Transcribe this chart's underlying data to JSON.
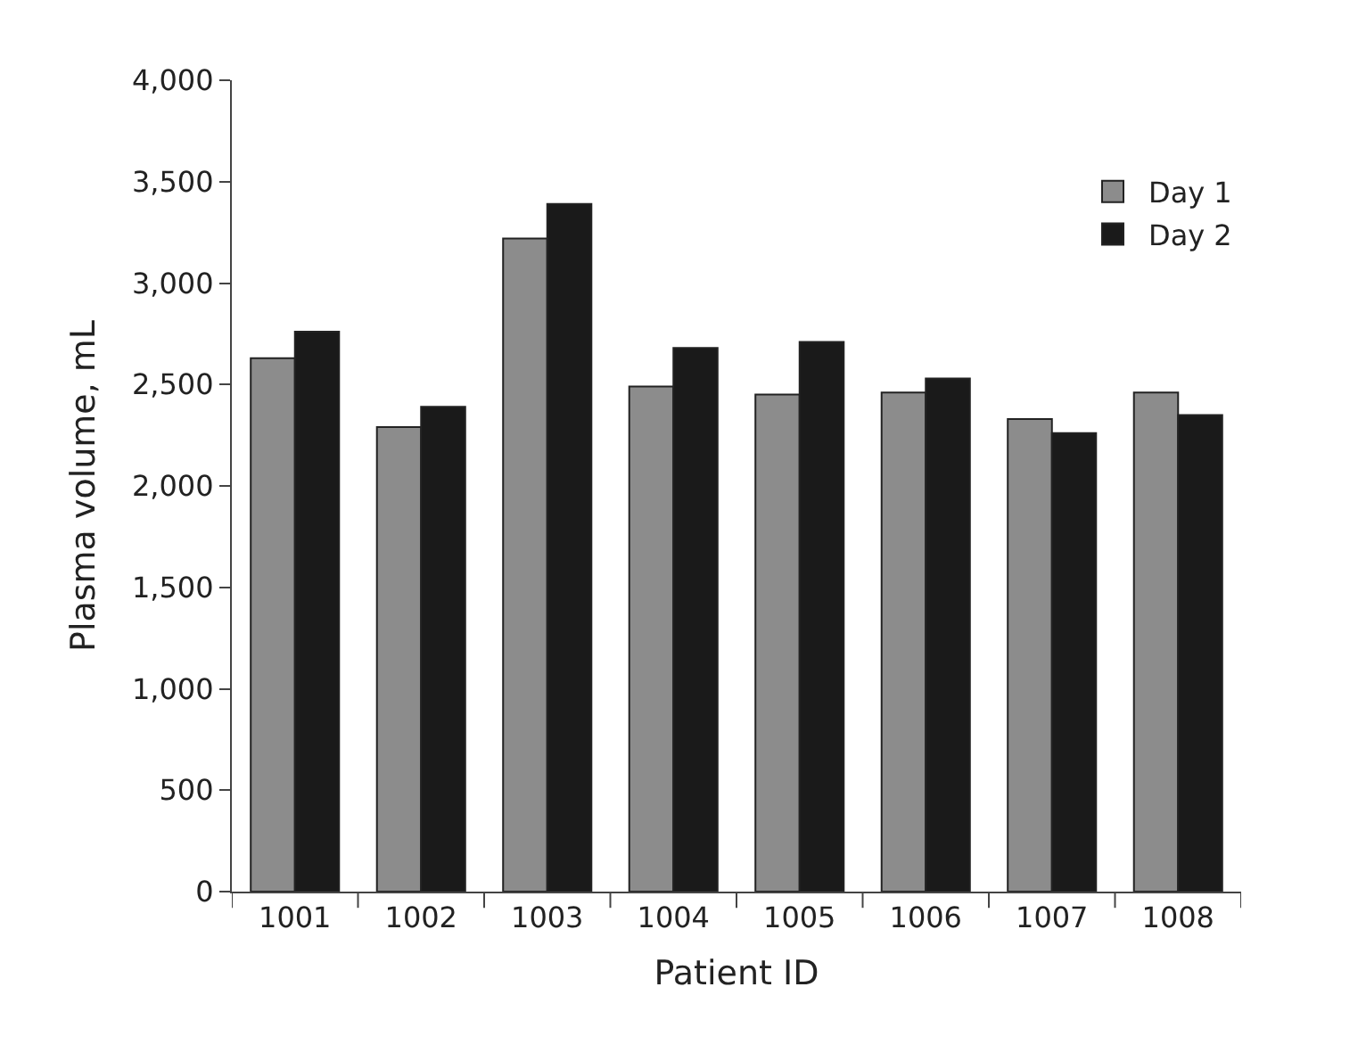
{
  "chart_data": {
    "type": "bar",
    "xlabel": "Patient ID",
    "ylabel": "Plasma volume, mL",
    "categories": [
      "1001",
      "1002",
      "1003",
      "1004",
      "1005",
      "1006",
      "1007",
      "1008"
    ],
    "series": [
      {
        "name": "Day 1",
        "color": "#8c8c8c",
        "values": [
          2630,
          2290,
          3220,
          2490,
          2450,
          2460,
          2330,
          2460
        ]
      },
      {
        "name": "Day 2",
        "color": "#1a1a1a",
        "values": [
          2760,
          2390,
          3390,
          2680,
          2710,
          2530,
          2260,
          2350
        ]
      }
    ],
    "ylim": [
      0,
      4000
    ],
    "yticks": [
      0,
      500,
      {
        "value": 1000,
        "label": "1,000"
      },
      {
        "value": 1500,
        "label": "1,500"
      },
      {
        "value": 2000,
        "label": "2,000"
      },
      {
        "value": 2500,
        "label": "2,500"
      },
      {
        "value": 3000,
        "label": "3,000"
      },
      {
        "value": 3500,
        "label": "3,500"
      },
      {
        "value": 4000,
        "label": "4,000"
      }
    ],
    "legend": "top right"
  }
}
